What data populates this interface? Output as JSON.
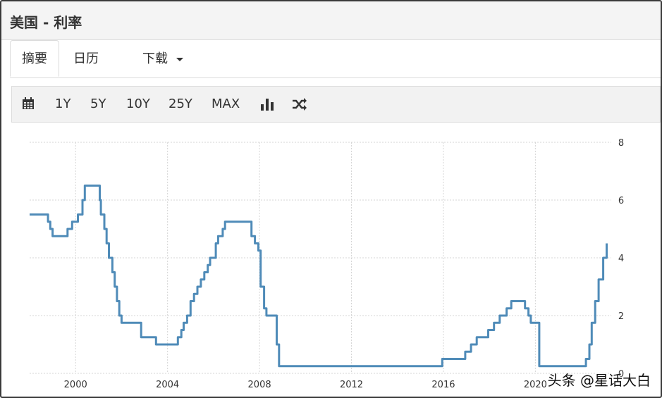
{
  "header": {
    "title": "美国 - 利率"
  },
  "tabs": [
    {
      "label": "摘要",
      "active": true
    },
    {
      "label": "日历",
      "active": false
    },
    {
      "label": "下载",
      "active": false,
      "dropdown": true
    }
  ],
  "toolbar": {
    "calendar_icon": "calendar-icon",
    "ranges": [
      "1Y",
      "5Y",
      "10Y",
      "25Y",
      "MAX"
    ],
    "bar_chart_icon": "bar-chart-icon",
    "compare_icon": "shuffle-icon"
  },
  "colors": {
    "line": "#4f8bb8",
    "grid": "#d5d5d5",
    "axis_text": "#333333"
  },
  "watermark": "头条 @星话大白",
  "chart_data": {
    "type": "line",
    "title": "",
    "xlabel": "",
    "ylabel": "",
    "x_ticks": [
      2000,
      2004,
      2008,
      2012,
      2016,
      2020
    ],
    "y_ticks": [
      0,
      2,
      4,
      6,
      8
    ],
    "xlim": [
      1998.0,
      2023.3
    ],
    "ylim": [
      0,
      8
    ],
    "y_axis_position": "right",
    "grid": true,
    "series": [
      {
        "name": "",
        "step": true,
        "points": [
          [
            1998.0,
            5.5
          ],
          [
            1998.6,
            5.5
          ],
          [
            1998.8,
            5.25
          ],
          [
            1998.9,
            5.0
          ],
          [
            1999.0,
            4.75
          ],
          [
            1999.5,
            4.75
          ],
          [
            1999.65,
            5.0
          ],
          [
            1999.85,
            5.25
          ],
          [
            2000.1,
            5.5
          ],
          [
            2000.3,
            6.0
          ],
          [
            2000.4,
            6.5
          ],
          [
            2001.0,
            6.5
          ],
          [
            2001.05,
            6.0
          ],
          [
            2001.1,
            5.5
          ],
          [
            2001.25,
            5.0
          ],
          [
            2001.35,
            4.5
          ],
          [
            2001.45,
            4.0
          ],
          [
            2001.6,
            3.5
          ],
          [
            2001.7,
            3.0
          ],
          [
            2001.8,
            2.5
          ],
          [
            2001.9,
            2.0
          ],
          [
            2002.0,
            1.75
          ],
          [
            2002.85,
            1.25
          ],
          [
            2003.5,
            1.0
          ],
          [
            2004.45,
            1.25
          ],
          [
            2004.6,
            1.5
          ],
          [
            2004.7,
            1.75
          ],
          [
            2004.85,
            2.0
          ],
          [
            2005.0,
            2.5
          ],
          [
            2005.15,
            2.75
          ],
          [
            2005.3,
            3.0
          ],
          [
            2005.45,
            3.25
          ],
          [
            2005.6,
            3.5
          ],
          [
            2005.75,
            3.75
          ],
          [
            2005.85,
            4.0
          ],
          [
            2006.1,
            4.5
          ],
          [
            2006.2,
            4.75
          ],
          [
            2006.4,
            5.0
          ],
          [
            2006.5,
            5.25
          ],
          [
            2007.65,
            4.75
          ],
          [
            2007.8,
            4.5
          ],
          [
            2007.95,
            4.25
          ],
          [
            2008.05,
            3.0
          ],
          [
            2008.2,
            2.25
          ],
          [
            2008.3,
            2.0
          ],
          [
            2008.75,
            1.0
          ],
          [
            2008.85,
            0.25
          ],
          [
            2015.95,
            0.5
          ],
          [
            2016.95,
            0.75
          ],
          [
            2017.2,
            1.0
          ],
          [
            2017.45,
            1.25
          ],
          [
            2017.95,
            1.5
          ],
          [
            2018.2,
            1.75
          ],
          [
            2018.45,
            2.0
          ],
          [
            2018.75,
            2.25
          ],
          [
            2018.95,
            2.5
          ],
          [
            2019.55,
            2.25
          ],
          [
            2019.7,
            2.0
          ],
          [
            2019.8,
            1.75
          ],
          [
            2020.17,
            0.25
          ],
          [
            2022.2,
            0.5
          ],
          [
            2022.35,
            1.0
          ],
          [
            2022.45,
            1.75
          ],
          [
            2022.6,
            2.5
          ],
          [
            2022.75,
            3.25
          ],
          [
            2022.95,
            4.0
          ],
          [
            2023.1,
            4.5
          ]
        ]
      }
    ]
  }
}
